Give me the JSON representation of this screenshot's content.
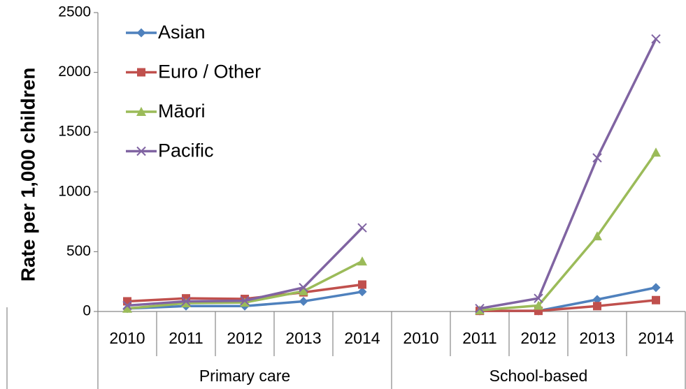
{
  "chart_data": {
    "type": "line",
    "y_label": "Rate per 1,000 children",
    "categories": [
      "2010",
      "2011",
      "2012",
      "2013",
      "2014",
      "2010",
      "2011",
      "2012",
      "2013",
      "2014"
    ],
    "groups": [
      "Primary care",
      "School-based"
    ],
    "series": [
      {
        "name": "Asian",
        "color": "#4f81bd",
        "marker": "diamond",
        "values": [
          25,
          45,
          45,
          85,
          165,
          null,
          5,
          5,
          100,
          200
        ]
      },
      {
        "name": "Euro / Other",
        "color": "#c0504d",
        "marker": "square",
        "values": [
          85,
          110,
          105,
          160,
          225,
          null,
          5,
          5,
          45,
          95
        ]
      },
      {
        "name": "Māori",
        "color": "#9bbb59",
        "marker": "triangle",
        "values": [
          25,
          70,
          75,
          170,
          420,
          null,
          10,
          50,
          630,
          1330
        ]
      },
      {
        "name": "Pacific",
        "color": "#8064a2",
        "marker": "x",
        "values": [
          50,
          85,
          90,
          200,
          700,
          null,
          25,
          110,
          1285,
          2280
        ]
      }
    ],
    "ylim": [
      0,
      2500
    ],
    "yticks": [
      0,
      500,
      1000,
      1500,
      2000,
      2500
    ],
    "grid": false,
    "legend": "top-left"
  }
}
